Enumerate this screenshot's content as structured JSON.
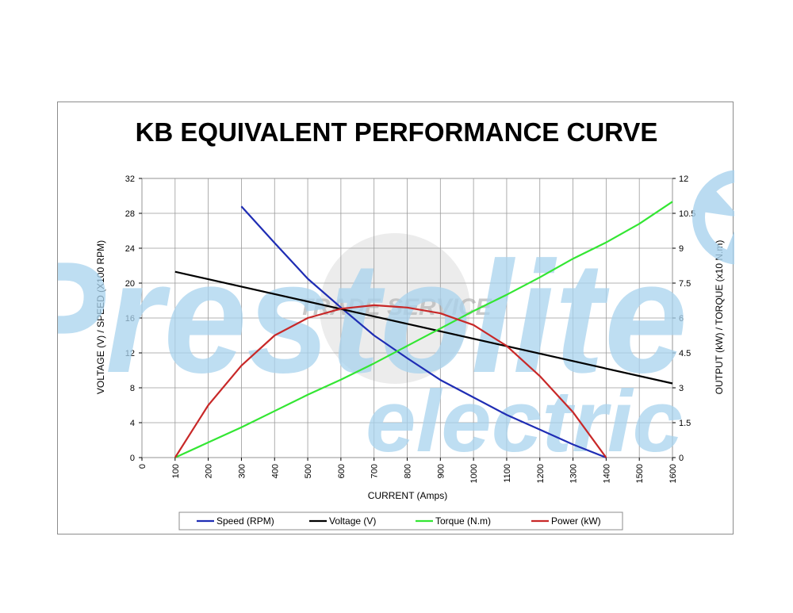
{
  "chart_data": {
    "type": "line",
    "title": "KB EQUIVALENT PERFORMANCE CURVE",
    "xlabel": "CURRENT (Amps)",
    "ylabel_left": "VOLTAGE (V) / SPEED (X100 RPM)",
    "ylabel_right": "OUTPUT (kW) / TORQUE (x10 N.m)",
    "xlim": [
      0,
      1600
    ],
    "x_ticks": [
      "0",
      "100",
      "200",
      "300",
      "400",
      "500",
      "600",
      "700",
      "800",
      "900",
      "1000",
      "1100",
      "1200",
      "1300",
      "1400",
      "1500",
      "1600"
    ],
    "ylim_left": [
      0,
      32
    ],
    "y_ticks_left": [
      "0",
      "4",
      "8",
      "12",
      "16",
      "20",
      "24",
      "28",
      "32"
    ],
    "ylim_right": [
      0,
      12
    ],
    "y_ticks_right": [
      "0",
      "1.5",
      "3",
      "4.5",
      "6",
      "7.5",
      "9",
      "10.5",
      "12"
    ],
    "grid": true,
    "legend_position": "bottom",
    "series": [
      {
        "name": "Speed (RPM)",
        "color": "#1f2db4",
        "axis": "left",
        "x": [
          300,
          400,
          500,
          600,
          700,
          800,
          900,
          1000,
          1100,
          1200,
          1300,
          1400
        ],
        "y": [
          28.8,
          24.6,
          20.5,
          17.2,
          14.0,
          11.4,
          8.9,
          6.9,
          4.9,
          3.2,
          1.5,
          0
        ]
      },
      {
        "name": "Voltage (V)",
        "color": "#000000",
        "axis": "left",
        "x": [
          100,
          1600
        ],
        "y": [
          21.3,
          8.5
        ]
      },
      {
        "name": "Torque (N.m)",
        "color": "#33e633",
        "axis": "right",
        "x": [
          100,
          200,
          300,
          400,
          500,
          600,
          700,
          800,
          900,
          1000,
          1100,
          1200,
          1300,
          1400,
          1500,
          1600
        ],
        "y": [
          0,
          0.65,
          1.3,
          2.0,
          2.7,
          3.35,
          4.05,
          4.8,
          5.55,
          6.3,
          7.0,
          7.75,
          8.55,
          9.25,
          10.05,
          11.0
        ]
      },
      {
        "name": "Power (kW)",
        "color": "#c82828",
        "axis": "right",
        "x": [
          100,
          200,
          300,
          400,
          500,
          600,
          700,
          800,
          900,
          1000,
          1100,
          1200,
          1300,
          1400
        ],
        "y": [
          0,
          2.25,
          3.95,
          5.25,
          6.0,
          6.4,
          6.55,
          6.45,
          6.2,
          5.7,
          4.8,
          3.5,
          1.95,
          0
        ]
      }
    ]
  },
  "watermark": {
    "brand_main": "Prestolite",
    "brand_sub": "electric",
    "stamp": "TRADE SERVICE",
    "color": "#a9d3ee"
  }
}
